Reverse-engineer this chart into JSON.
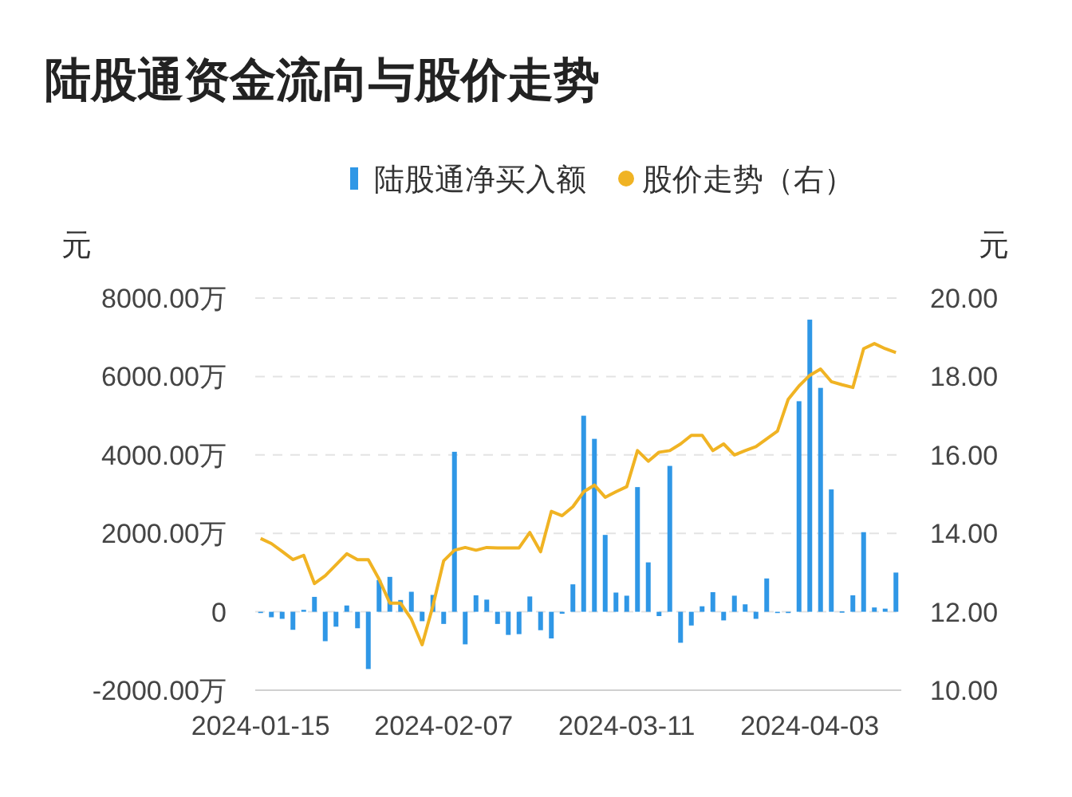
{
  "chart_data": {
    "type": "bar",
    "title": "陆股通资金流向与股价走势",
    "ylabel": "元",
    "y2label": "元",
    "categories": [
      "2024-01-15",
      null,
      null,
      null,
      null,
      null,
      null,
      null,
      null,
      null,
      null,
      null,
      null,
      null,
      null,
      null,
      null,
      "2024-02-07",
      null,
      null,
      null,
      null,
      null,
      null,
      null,
      null,
      null,
      null,
      null,
      null,
      null,
      null,
      null,
      null,
      "2024-03-11",
      null,
      null,
      null,
      null,
      null,
      null,
      null,
      null,
      null,
      null,
      null,
      null,
      null,
      null,
      null,
      null,
      "2024-04-03",
      null,
      null,
      null,
      null,
      null,
      null,
      null,
      null
    ],
    "series": [
      {
        "name": "陆股通净买入额",
        "color": "#2f97e6",
        "values": [
          -30,
          -140,
          -180,
          -460,
          50,
          380,
          -750,
          -380,
          160,
          -420,
          -1460,
          810,
          890,
          300,
          510,
          -240,
          430,
          -310,
          4080,
          -830,
          420,
          310,
          -310,
          -590,
          -570,
          390,
          -470,
          -680,
          -50,
          700,
          5000,
          4410,
          1960,
          490,
          410,
          3180,
          1260,
          -110,
          3720,
          -790,
          -350,
          140,
          500,
          -220,
          410,
          190,
          -180,
          850,
          0,
          0,
          5370,
          7450,
          5710,
          3120,
          10,
          420,
          2030,
          110,
          80,
          1000
        ]
      },
      {
        "name": "股价走势（右）",
        "type": "line",
        "axis": "y2",
        "color": "#f0b323",
        "values": [
          13.87,
          13.74,
          13.54,
          13.33,
          13.44,
          12.72,
          12.92,
          13.2,
          13.48,
          13.33,
          13.33,
          12.83,
          12.22,
          12.22,
          11.81,
          11.16,
          12.15,
          13.3,
          13.57,
          13.64,
          13.57,
          13.64,
          13.63,
          13.63,
          13.63,
          14.02,
          13.53,
          14.56,
          14.45,
          14.68,
          15.06,
          15.23,
          14.92,
          15.06,
          15.19,
          16.11,
          15.84,
          16.07,
          16.11,
          16.28,
          16.5,
          16.5,
          16.11,
          16.28,
          16.0,
          16.11,
          16.21,
          16.41,
          16.61,
          17.42,
          17.76,
          18.03,
          18.19,
          17.87,
          17.79,
          17.72,
          18.71,
          18.84,
          18.71,
          18.61
        ]
      }
    ],
    "ylim": [
      -2000,
      8000
    ],
    "yticks": [
      {
        "value": -2000,
        "label": "-2000.00万"
      },
      {
        "value": 0,
        "label": "0"
      },
      {
        "value": 2000,
        "label": "2000.00万"
      },
      {
        "value": 4000,
        "label": "4000.00万"
      },
      {
        "value": 6000,
        "label": "6000.00万"
      },
      {
        "value": 8000,
        "label": "8000.00万"
      }
    ],
    "y2lim": [
      10,
      20
    ],
    "y2ticks": [
      {
        "value": 10,
        "label": "10.00"
      },
      {
        "value": 12,
        "label": "12.00"
      },
      {
        "value": 14,
        "label": "14.00"
      },
      {
        "value": 16,
        "label": "16.00"
      },
      {
        "value": 18,
        "label": "18.00"
      },
      {
        "value": 20,
        "label": "20.00"
      }
    ],
    "grid": "y",
    "legend": "top"
  }
}
